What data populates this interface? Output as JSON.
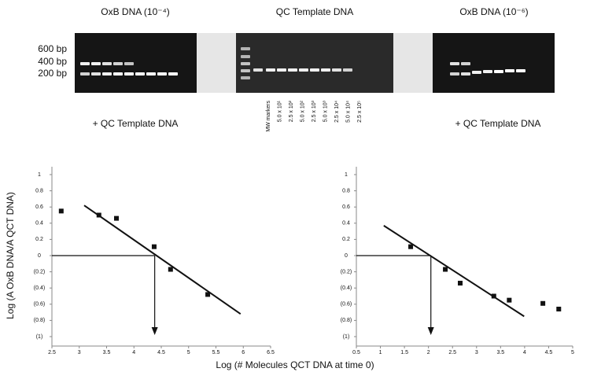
{
  "figure": {
    "gels": [
      {
        "title": "OxB DNA (10⁻⁴)",
        "caption": "+ QC Template DNA",
        "size_markers": [
          "600 bp",
          "400 bp",
          "200 bp"
        ]
      },
      {
        "title": "QC Template DNA",
        "lanes": [
          "MW markers",
          "5.0 x 10¹",
          "2.5 x 10²",
          "5.0 x 10²",
          "2.5 x 10³",
          "5.0 x 10³",
          "2.5 x 10⁴",
          "5.0 x 10⁴",
          "2.5 x 10⁵"
        ]
      },
      {
        "title": "OxB DNA (10⁻⁶)",
        "caption": "+ QC Template DNA"
      }
    ],
    "y_label": "Log (A OxB DNA/A QCT DNA)",
    "x_label": "Log (# Molecules QCT DNA at time 0)"
  },
  "chart_data": [
    {
      "type": "scatter",
      "series": [
        {
          "mode": "markers",
          "color": "#111111",
          "x": [
            2.67,
            3.36,
            3.68,
            4.37,
            4.67,
            5.35
          ],
          "values": [
            0.55,
            0.5,
            0.46,
            0.11,
            -0.17,
            -0.48
          ]
        },
        {
          "mode": "line",
          "color": "#111111",
          "x": [
            3.09,
            5.95
          ],
          "values": [
            0.62,
            -0.72
          ]
        }
      ],
      "reference": {
        "x": 4.38,
        "y": 0
      },
      "xlim": [
        2.5,
        6.5
      ],
      "xticks": [
        2.5,
        3,
        3.5,
        4,
        4.5,
        5,
        5.5,
        6,
        6.5
      ],
      "ylim": [
        -1,
        1
      ],
      "yticks": [
        1,
        0.8,
        0.6,
        0.4,
        0.2,
        0,
        {
          "value": -0.2,
          "label": "(0.2)"
        },
        {
          "value": -0.4,
          "label": "(0.4)"
        },
        {
          "value": -0.6,
          "label": "(0.6)"
        },
        {
          "value": -0.8,
          "label": "(0.8)"
        },
        {
          "value": -1,
          "label": "(1)"
        }
      ]
    },
    {
      "type": "scatter",
      "series": [
        {
          "mode": "markers",
          "color": "#111111",
          "x": [
            1.63,
            2.35,
            2.66,
            3.36,
            3.68,
            4.38,
            4.71
          ],
          "values": [
            0.11,
            -0.17,
            -0.34,
            -0.5,
            -0.55,
            -0.59,
            -0.66
          ]
        },
        {
          "mode": "line",
          "color": "#111111",
          "x": [
            1.07,
            3.99
          ],
          "values": [
            0.37,
            -0.75
          ]
        }
      ],
      "reference": {
        "x": 2.05,
        "y": 0
      },
      "xlim": [
        0.5,
        5
      ],
      "xticks": [
        0.5,
        1,
        1.5,
        2,
        2.5,
        3,
        3.5,
        4,
        4.5,
        5
      ],
      "ylim": [
        -1,
        1
      ],
      "yticks": [
        1,
        0.8,
        0.6,
        0.4,
        0.2,
        0,
        {
          "value": -0.2,
          "label": "(0.2)"
        },
        {
          "value": -0.4,
          "label": "(0.4)"
        },
        {
          "value": -0.6,
          "label": "(0.6)"
        },
        {
          "value": -0.8,
          "label": "(0.8)"
        },
        {
          "value": -1,
          "label": "(1)"
        }
      ]
    }
  ]
}
